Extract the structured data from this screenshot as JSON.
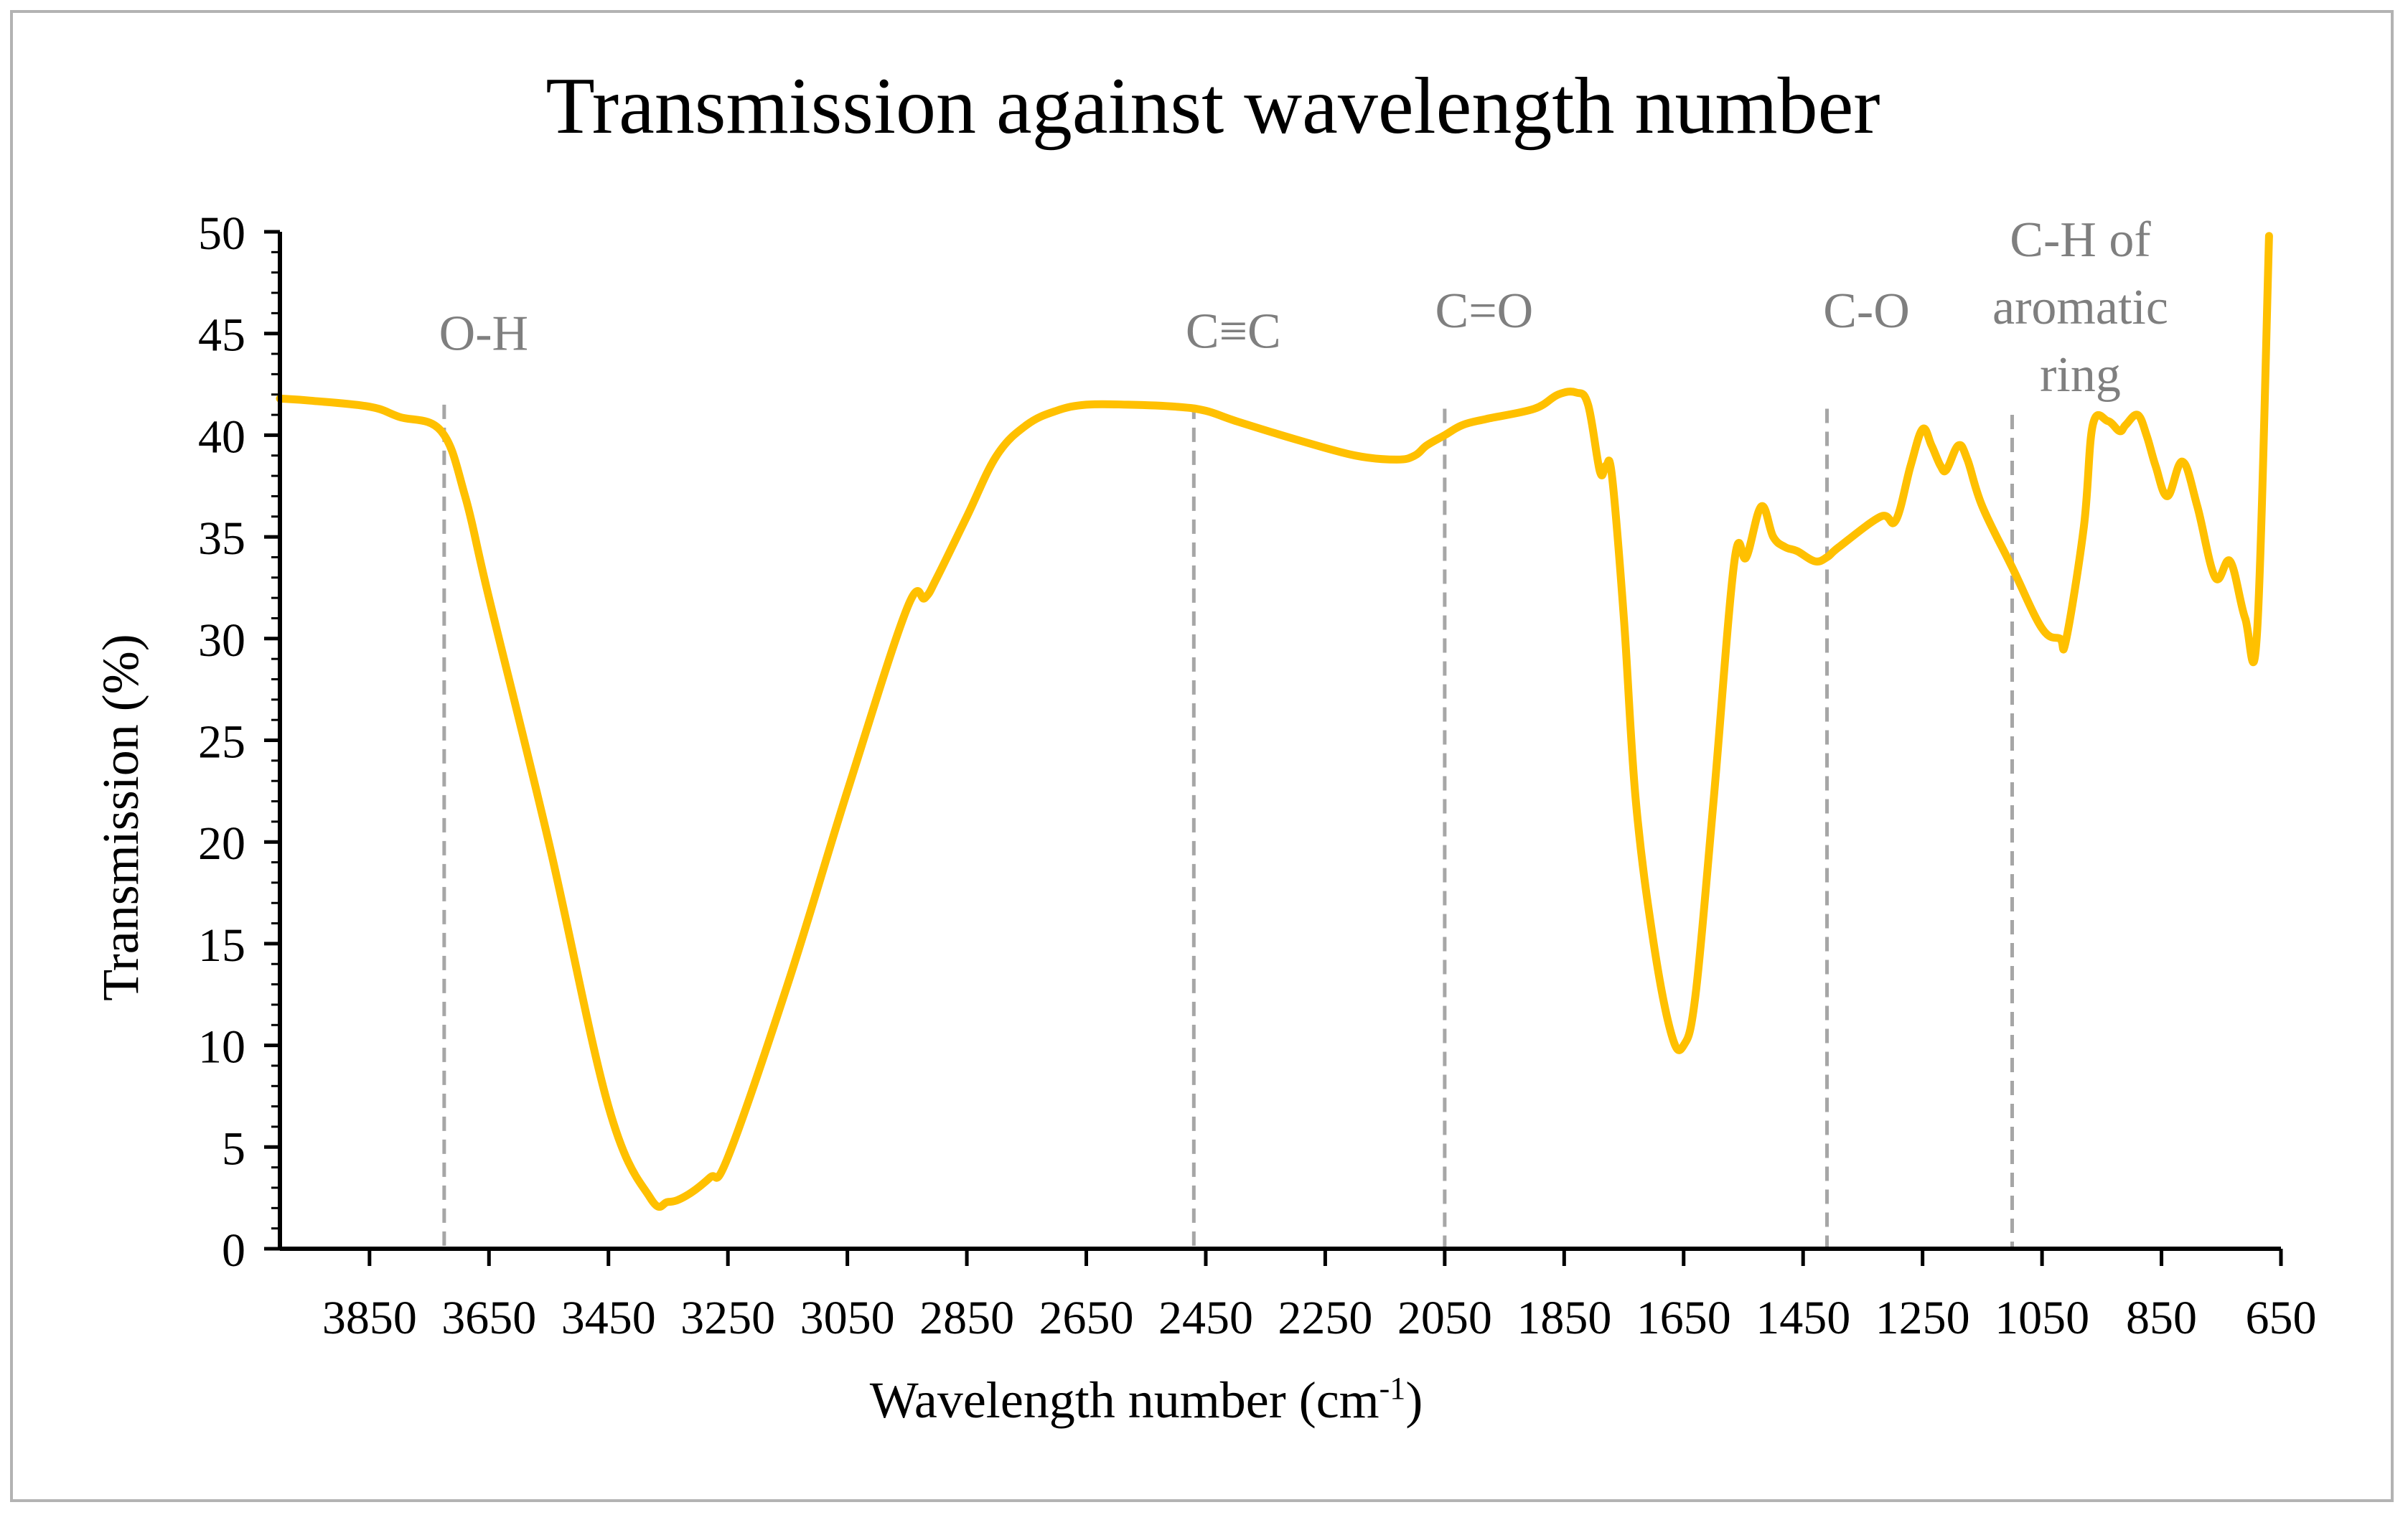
{
  "chart_data": {
    "type": "line",
    "title": "Transmission against wavelength number",
    "xlabel": "Wavelength number (cm",
    "xlabel_superscript": "-1",
    "xlabel_suffix": ")",
    "ylabel": "Transmission (%)",
    "xlim": [
      4000,
      650
    ],
    "ylim": [
      0,
      50
    ],
    "x_reversed": true,
    "x_ticks": [
      3850,
      3650,
      3450,
      3250,
      3050,
      2850,
      2650,
      2450,
      2250,
      2050,
      1850,
      1650,
      1450,
      1250,
      1050,
      850,
      650
    ],
    "y_ticks": [
      0,
      5,
      10,
      15,
      20,
      25,
      30,
      35,
      40,
      45,
      50
    ],
    "series": [
      {
        "name": "Transmission",
        "color": "#FFC000",
        "x": [
          4000,
          3950,
          3850,
          3800,
          3730,
          3690,
          3650,
          3550,
          3450,
          3380,
          3350,
          3320,
          3280,
          3250,
          3150,
          3050,
          2950,
          2920,
          2900,
          2850,
          2800,
          2750,
          2700,
          2650,
          2580,
          2500,
          2450,
          2400,
          2300,
          2200,
          2130,
          2100,
          2080,
          2050,
          2020,
          1980,
          1900,
          1860,
          1830,
          1810,
          1790,
          1780,
          1770,
          1750,
          1730,
          1700,
          1670,
          1650,
          1630,
          1600,
          1565,
          1545,
          1520,
          1500,
          1480,
          1460,
          1430,
          1410,
          1390,
          1320,
          1295,
          1270,
          1250,
          1235,
          1220,
          1210,
          1190,
          1175,
          1150,
          1100,
          1050,
          1020,
          1010,
          980,
          965,
          940,
          920,
          910,
          890,
          875,
          860,
          840,
          815,
          790,
          760,
          735,
          710,
          690,
          670
        ],
        "values": [
          41.8,
          41.7,
          41.4,
          40.9,
          40.2,
          37.0,
          32.0,
          20.0,
          7.0,
          2.5,
          2.3,
          2.6,
          3.5,
          4.5,
          13.0,
          22.5,
          31.5,
          32.0,
          33.0,
          36.0,
          39.0,
          40.5,
          41.2,
          41.5,
          41.5,
          41.4,
          41.2,
          40.7,
          39.8,
          39.0,
          38.8,
          39.0,
          39.5,
          40.0,
          40.5,
          40.8,
          41.3,
          42.0,
          42.1,
          41.5,
          38.2,
          38.5,
          38.0,
          31.0,
          22.0,
          15.0,
          10.5,
          10.0,
          12.5,
          22.0,
          33.8,
          34.0,
          36.5,
          35.0,
          34.5,
          34.3,
          33.8,
          34.0,
          34.5,
          36.0,
          35.8,
          38.5,
          40.3,
          39.5,
          38.5,
          38.3,
          39.5,
          38.8,
          36.5,
          33.5,
          30.5,
          30.0,
          29.9,
          35.5,
          40.5,
          40.7,
          40.2,
          40.5,
          41.0,
          40.0,
          38.5,
          37.0,
          38.7,
          36.5,
          33.0,
          33.8,
          31.0,
          30.3,
          49.8
        ]
      }
    ],
    "annotations": [
      {
        "label_lines": [
          "O-H"
        ],
        "x": 3725,
        "line_top": 41.5,
        "label_y": 44.2
      },
      {
        "label_lines": [
          "C≡C"
        ],
        "x": 2470,
        "line_top": 41.5,
        "label_y": 44.3
      },
      {
        "label_lines": [
          "C=O"
        ],
        "x": 2050,
        "line_top": 41.3,
        "label_y": 45.3
      },
      {
        "label_lines": [
          "C-O"
        ],
        "x": 1410,
        "line_top": 41.3,
        "label_y": 45.3
      },
      {
        "label_lines": [
          "C-H of",
          "aromatic",
          "ring"
        ],
        "x": 1100,
        "line_top": 41.0,
        "label_y": 48.8
      }
    ],
    "grid": false,
    "legend": "none",
    "colors": {
      "line": "#FFC000",
      "annotation": "#7f7f7f",
      "annotation_line": "#a6a6a6",
      "axis": "#000000",
      "frame": "#b3b3b3"
    }
  }
}
